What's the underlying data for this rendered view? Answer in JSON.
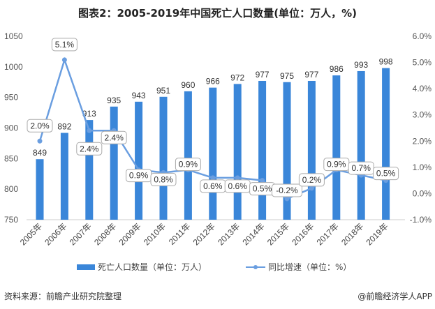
{
  "title": "图表2：2005-2019年中国死亡人口数量(单位：万人，%)",
  "source": "资料来源：前瞻产业研究院整理",
  "credit": "@前瞻经济学人APP",
  "colors": {
    "bar": "#3a86d9",
    "line": "#6a9ee0"
  },
  "chart_data": {
    "type": "bar+line",
    "categories": [
      "2005年",
      "2006年",
      "2007年",
      "2008年",
      "2009年",
      "2010年",
      "2011年",
      "2012年",
      "2013年",
      "2014年",
      "2015年",
      "2016年",
      "2017年",
      "2018年",
      "2019年"
    ],
    "series": [
      {
        "name": "死亡人口数量（单位：万人）",
        "type": "bar",
        "axis": "left",
        "values": [
          849,
          892,
          913,
          935,
          943,
          951,
          960,
          966,
          972,
          977,
          975,
          977,
          986,
          993,
          998
        ]
      },
      {
        "name": "同比增速（单位：%）",
        "type": "line",
        "axis": "right",
        "values": [
          2.0,
          5.1,
          2.4,
          2.4,
          0.9,
          0.8,
          0.9,
          0.6,
          0.6,
          0.5,
          -0.2,
          0.2,
          0.9,
          0.7,
          0.5
        ]
      }
    ],
    "left_axis": {
      "ylim": [
        750,
        1050
      ],
      "ticks": [
        "750",
        "800",
        "850",
        "900",
        "950",
        "1000",
        "1050"
      ]
    },
    "right_axis": {
      "ylim": [
        -1.0,
        6.0
      ],
      "ticks": [
        "-1.0%",
        "0.0%",
        "1.0%",
        "2.0%",
        "3.0%",
        "4.0%",
        "5.0%",
        "6.0%"
      ]
    },
    "grid": false,
    "legend": "bottom"
  }
}
